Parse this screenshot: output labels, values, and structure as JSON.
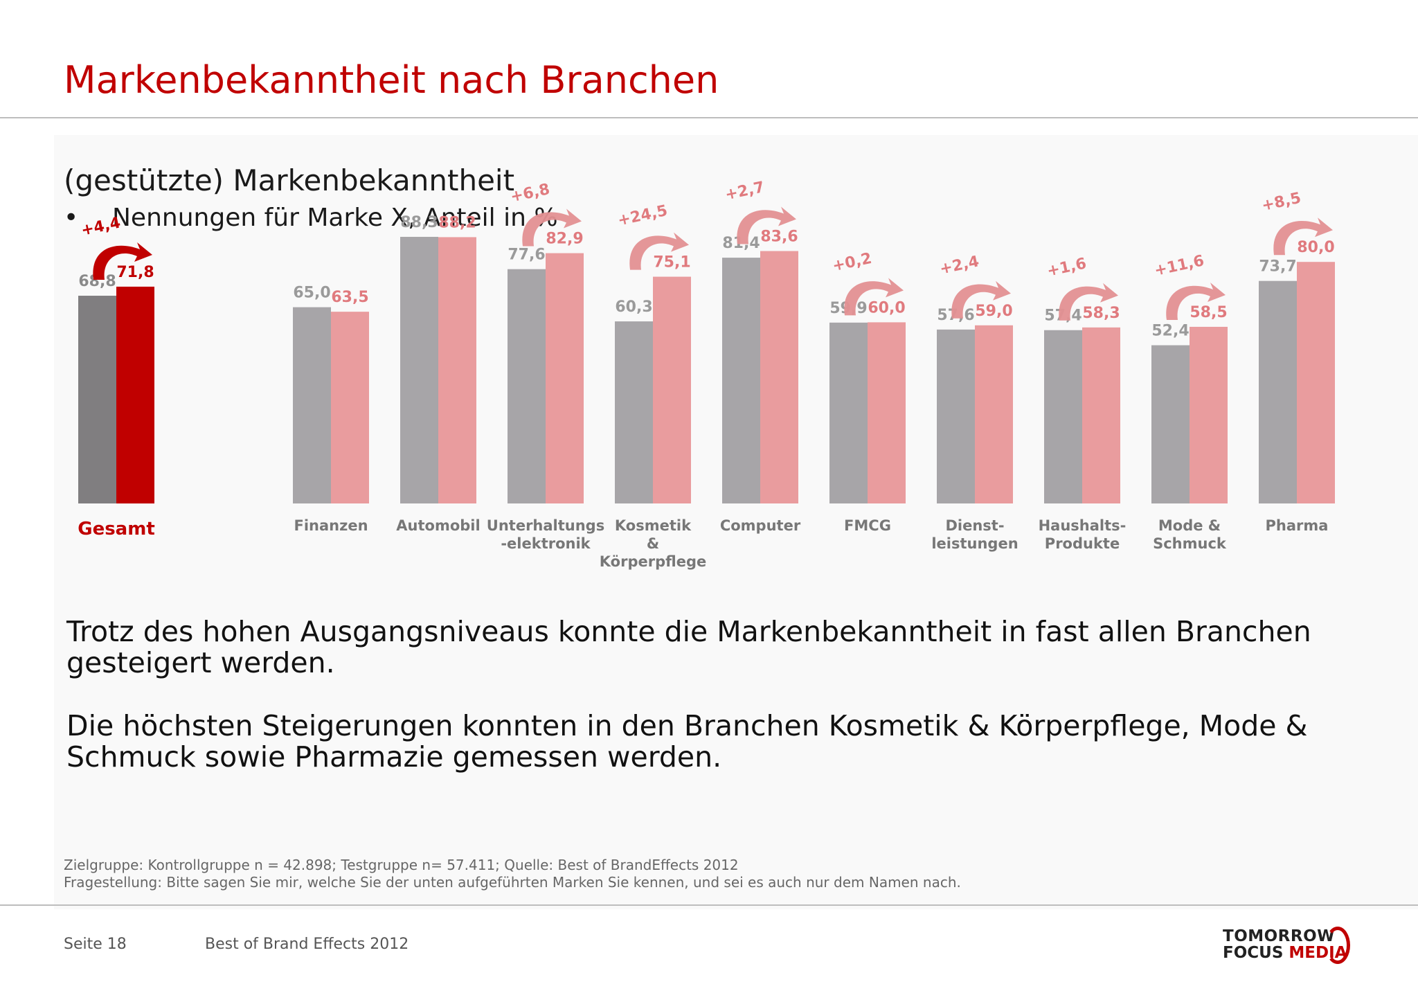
{
  "title": "Markenbekanntheit nach Branchen",
  "subtitle": "(gestützte) Markenbekanntheit",
  "bullet": "Nennungen für Marke X, Anteil in %",
  "paragraph1": "Trotz des hohen Ausgangsniveaus konnte die Markenbekanntheit in fast allen Branchen gesteigert werden.",
  "paragraph2": "Die höchsten Steigerungen konnten in den Branchen Kosmetik & Körperpflege, Mode & Schmuck sowie Pharmazie gemessen werden.",
  "footnote1": "Zielgruppe: Kontrollgruppe n = 42.898; Testgruppe n= 57.411; Quelle: Best of BrandEffects 2012",
  "footnote2": "Fragestellung: Bitte sagen Sie mir, welche Sie der unten aufgeführten Marken Sie kennen, und sei es auch nur dem Namen nach.",
  "footer": {
    "page": "Seite 18",
    "doc": "Best of Brand Effects 2012"
  },
  "logo": {
    "line1": "TOMORROW",
    "line2a": "FOCUS ",
    "line2b": "MEDIA"
  },
  "colors": {
    "accent": "#c00000",
    "kontroll_total": "#807e80",
    "test_total": "#c00000",
    "kontroll": "#a7a5a8",
    "test": "#e99c9e"
  },
  "chart_data": {
    "type": "bar",
    "categories": [
      "Gesamt",
      "Finanzen",
      "Automobil",
      "Unterhaltungs\n-elektronik",
      "Kosmetik\n&\nKörperpflege",
      "Computer",
      "FMCG",
      "Dienst-\nleistungen",
      "Haushalts-\nProdukte",
      "Mode &\nSchmuck",
      "Pharma"
    ],
    "series": [
      {
        "values": [
          68.8,
          65.0,
          88.3,
          77.6,
          60.3,
          81.4,
          59.9,
          57.6,
          57.4,
          52.4,
          73.7
        ]
      },
      {
        "values": [
          71.8,
          63.5,
          88.2,
          82.9,
          75.1,
          83.6,
          60.0,
          59.0,
          58.3,
          58.5,
          80.0
        ]
      }
    ],
    "value_labels": [
      [
        "68,8",
        "65,0",
        "88,3",
        "77,6",
        "60,3",
        "81,4",
        "59,9",
        "57,6",
        "57,4",
        "52,4",
        "73,7"
      ],
      [
        "71,8",
        "63,5",
        "88,2",
        "82,9",
        "75,1",
        "83,6",
        "60,0",
        "59,0",
        "58,3",
        "58,5",
        "80,0"
      ]
    ],
    "changes": [
      "+4,4",
      "",
      "",
      "+6,8",
      "+24,5",
      "+2,7",
      "+0,2",
      "+2,4",
      "+1,6",
      "+11,6",
      "+8,5"
    ],
    "ylim": [
      0,
      100
    ],
    "grid": false
  }
}
